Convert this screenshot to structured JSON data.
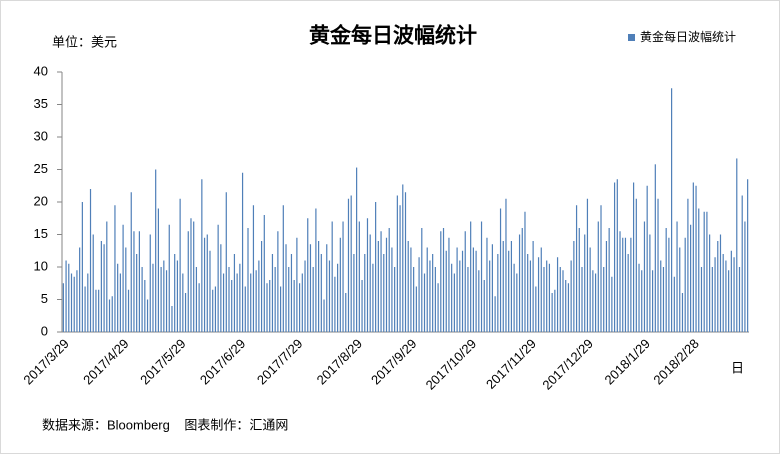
{
  "chart_data": {
    "type": "bar",
    "title": "黄金每日波幅统计",
    "unit_label": "单位：美元",
    "x_label": "日",
    "source": "数据来源：Bloomberg    图表制作：汇通网",
    "series": [
      {
        "name": "黄金每日波幅统计",
        "color": "#4f7fb8",
        "values": [
          7.5,
          11,
          10.5,
          9,
          8.5,
          9.5,
          13,
          20,
          7,
          9,
          22,
          15,
          6.5,
          6.5,
          14,
          13.5,
          17,
          5,
          5.5,
          19.5,
          10.5,
          9,
          16.5,
          13,
          6.5,
          21.5,
          15.5,
          12,
          15.5,
          10,
          8,
          5,
          15,
          10.5,
          25,
          19,
          10,
          11,
          9.5,
          16.5,
          4,
          12,
          11,
          20.5,
          9,
          6,
          15.5,
          17.5,
          17,
          10,
          7.5,
          23.5,
          14.5,
          15,
          12.5,
          6.5,
          7,
          16.5,
          13.5,
          9,
          21.5,
          10,
          8,
          12,
          9,
          10.5,
          24.5,
          7,
          16,
          9,
          19.5,
          9.5,
          11,
          14,
          18,
          7.5,
          8,
          12,
          10,
          15.5,
          7,
          19.5,
          13.5,
          10,
          12,
          8,
          14.5,
          7.5,
          9,
          11,
          17.5,
          13.5,
          10,
          19,
          14,
          12,
          5,
          13.5,
          11,
          17,
          8.5,
          10.5,
          14.5,
          17,
          6,
          20.5,
          21,
          12,
          25.3,
          17,
          8,
          12,
          17.5,
          15,
          10.5,
          20,
          14,
          15.5,
          12,
          14.5,
          16,
          13,
          10,
          21,
          19.5,
          22.7,
          21.5,
          14,
          13,
          10,
          7,
          11.5,
          16,
          9,
          13,
          11,
          12,
          10,
          7.5,
          15.5,
          16,
          12.5,
          14.5,
          10.5,
          9,
          13,
          11,
          12.5,
          15.5,
          10,
          17,
          13,
          12.5,
          9.5,
          17,
          8,
          14.5,
          11,
          13.5,
          5.5,
          12,
          19,
          14,
          20.5,
          12.5,
          14,
          10.5,
          9,
          15,
          16,
          18.5,
          12,
          11,
          14,
          7,
          11.5,
          13,
          10,
          11,
          10.5,
          6,
          6.5,
          11.5,
          10,
          9.5,
          8,
          7.5,
          11,
          14,
          19.5,
          16,
          10,
          15,
          20.5,
          13,
          9.5,
          9,
          17,
          19.5,
          10,
          14,
          16,
          8.5,
          23,
          23.5,
          15.5,
          14.5,
          14.5,
          12,
          14.5,
          23,
          20.5,
          10.5,
          9.5,
          17,
          22.5,
          15,
          9.5,
          25.8,
          20.5,
          11,
          10,
          16,
          14.5,
          37.5,
          8.5,
          17,
          13,
          6,
          14.5,
          20.5,
          16.5,
          23,
          22.5,
          19,
          10,
          18.5,
          18.5,
          15,
          10,
          11.5,
          14,
          15,
          12,
          11,
          9.5,
          12.5,
          11.5,
          26.7,
          10,
          21,
          17,
          23.5
        ]
      }
    ],
    "categories": [
      "2017/3/29",
      null,
      null,
      null,
      null,
      null,
      null,
      null,
      null,
      null,
      null,
      null,
      null,
      null,
      null,
      null,
      null,
      null,
      null,
      null,
      null,
      null,
      "2017/4/29",
      null,
      null,
      null,
      null,
      null,
      null,
      null,
      null,
      null,
      null,
      null,
      null,
      null,
      null,
      null,
      null,
      null,
      null,
      null,
      null,
      "2017/5/29",
      null,
      null,
      null,
      null,
      null,
      null,
      null,
      null,
      null,
      null,
      null,
      null,
      null,
      null,
      null,
      null,
      null,
      null,
      null,
      null,
      null,
      "2017/6/29",
      null,
      null,
      null,
      null,
      null,
      null,
      null,
      null,
      null,
      null,
      null,
      null,
      null,
      null,
      null,
      null,
      null,
      null,
      null,
      null,
      "2017/7/29",
      null,
      null,
      null,
      null,
      null,
      null,
      null,
      null,
      null,
      null,
      null,
      null,
      null,
      null,
      null,
      null,
      null,
      null,
      null,
      null,
      null,
      "2017/8/29",
      null,
      null,
      null,
      null,
      null,
      null,
      null,
      null,
      null,
      null,
      null,
      null,
      null,
      null,
      null,
      null,
      null,
      null,
      null,
      "2017/9/29",
      null,
      null,
      null,
      null,
      null,
      null,
      null,
      null,
      null,
      null,
      null,
      null,
      null,
      null,
      null,
      null,
      null,
      null,
      null,
      null,
      null,
      "2017/10/29",
      null,
      null,
      null,
      null,
      null,
      null,
      null,
      null,
      null,
      null,
      null,
      null,
      null,
      null,
      null,
      null,
      null,
      null,
      null,
      null,
      null,
      "2017/11/29",
      null,
      null,
      null,
      null,
      null,
      null,
      null,
      null,
      null,
      null,
      null,
      null,
      null,
      null,
      null,
      null,
      null,
      null,
      null,
      null,
      "2017/12/29",
      null,
      null,
      null,
      null,
      null,
      null,
      null,
      null,
      null,
      null,
      null,
      null,
      null,
      null,
      null,
      null,
      null,
      null,
      null,
      null,
      "2018/1/29",
      null,
      null,
      null,
      null,
      null,
      null,
      null,
      null,
      null,
      null,
      null,
      null,
      null,
      null,
      null,
      null,
      null,
      "2018/2/28",
      null,
      null,
      null,
      null,
      null,
      null,
      null,
      null,
      null,
      null,
      null,
      null,
      null,
      null,
      null,
      null,
      null,
      null,
      null,
      null
    ],
    "ylim": [
      0,
      40
    ],
    "yticks": [
      0,
      5,
      10,
      15,
      20,
      25,
      30,
      35,
      40
    ],
    "grid": false,
    "legend": "top-right"
  }
}
